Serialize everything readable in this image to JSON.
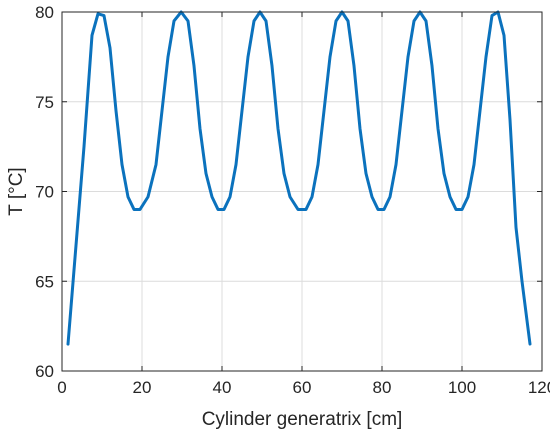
{
  "chart_data": {
    "type": "line",
    "title": "",
    "xlabel": "Cylinder generatrix [cm]",
    "ylabel": "T [°C]",
    "xlim": [
      0,
      120
    ],
    "ylim": [
      60,
      80
    ],
    "xticks": [
      0,
      20,
      40,
      60,
      80,
      100,
      120
    ],
    "yticks": [
      60,
      65,
      70,
      75,
      80
    ],
    "grid": true,
    "colors": {
      "series": "#0b72bd",
      "axis": "#262626",
      "grid": "#dcdcdc"
    },
    "series": [
      {
        "name": "",
        "x": [
          1.5,
          3.5,
          5.5,
          7.5,
          9,
          10.5,
          12,
          13.5,
          15,
          16.5,
          18,
          19.5,
          21.5,
          23.5,
          25,
          26.5,
          28,
          29.8,
          31.5,
          33,
          34.5,
          36,
          37.5,
          39,
          40.5,
          42,
          43.5,
          45,
          46.5,
          48,
          49.5,
          51,
          52.5,
          54,
          55.5,
          57,
          59,
          61,
          62.5,
          64,
          65.5,
          67,
          68.5,
          70,
          71.5,
          73,
          74.5,
          76,
          77.5,
          79,
          80.5,
          82,
          83.5,
          85,
          86.5,
          88,
          89.5,
          91,
          92.5,
          94,
          95.5,
          97,
          98.5,
          100,
          101.5,
          103,
          104.5,
          106,
          107.5,
          109,
          110.5,
          112,
          113.5,
          115,
          117
        ],
        "values": [
          61.5,
          67.0,
          72.5,
          78.7,
          79.9,
          79.8,
          78.0,
          74.5,
          71.5,
          69.7,
          69.0,
          69.0,
          69.7,
          71.5,
          74.5,
          77.5,
          79.5,
          80.0,
          79.5,
          77.0,
          73.5,
          71.0,
          69.7,
          69.0,
          69.0,
          69.7,
          71.5,
          74.5,
          77.5,
          79.5,
          80.0,
          79.5,
          77.0,
          73.5,
          71.0,
          69.7,
          69.0,
          69.0,
          69.7,
          71.5,
          74.5,
          77.5,
          79.5,
          80.0,
          79.5,
          77.0,
          73.5,
          71.0,
          69.7,
          69.0,
          69.0,
          69.7,
          71.5,
          74.5,
          77.5,
          79.5,
          80.0,
          79.5,
          77.0,
          73.5,
          71.0,
          69.7,
          69.0,
          69.0,
          69.7,
          71.5,
          74.5,
          77.5,
          79.8,
          80.0,
          78.7,
          74.0,
          68.0,
          65.0,
          61.5
        ]
      }
    ]
  }
}
